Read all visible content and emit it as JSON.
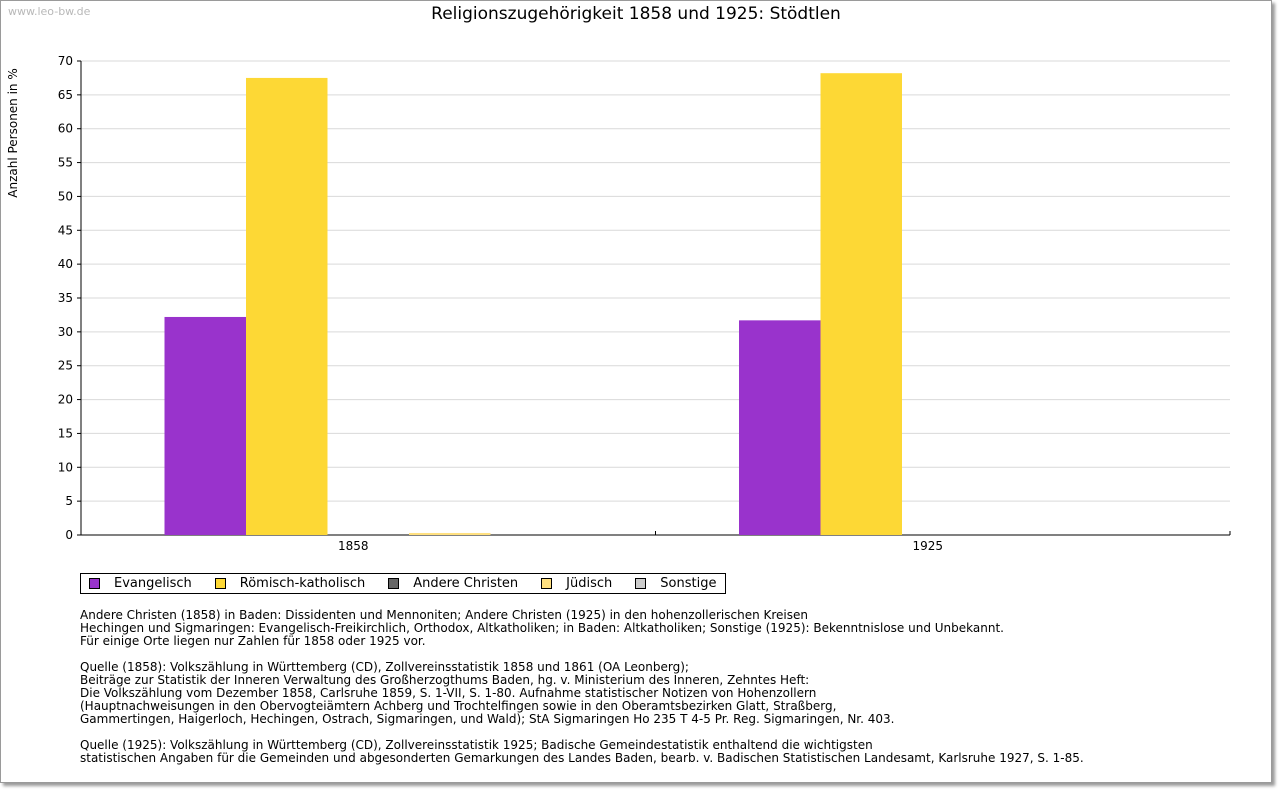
{
  "watermark": "www.leo-bw.de",
  "chart_data": {
    "type": "bar",
    "title": "Religionszugehörigkeit 1858 und 1925: Stödtlen",
    "xlabel": "",
    "ylabel": "Anzahl Personen in %",
    "ylim": [
      0,
      70
    ],
    "yticks": [
      0,
      5,
      10,
      15,
      20,
      25,
      30,
      35,
      40,
      45,
      50,
      55,
      60,
      65,
      70
    ],
    "grid": true,
    "categories": [
      "1858",
      "1925"
    ],
    "series": [
      {
        "name": "Evangelisch",
        "color": "#9933cc",
        "values": [
          32.2,
          31.7
        ]
      },
      {
        "name": "Römisch-katholisch",
        "color": "#fdd835",
        "values": [
          67.5,
          68.2
        ]
      },
      {
        "name": "Andere Christen",
        "color": "#666666",
        "values": [
          0,
          0
        ]
      },
      {
        "name": "Jüdisch",
        "color": "#ffe080",
        "values": [
          0.3,
          0
        ]
      },
      {
        "name": "Sonstige",
        "color": "#cccccc",
        "values": [
          0,
          0
        ]
      }
    ],
    "legend_position": "bottom-left"
  },
  "notes": [
    "Andere Christen (1858) in Baden: Dissidenten und Mennoniten; Andere Christen (1925) in den hohenzollerischen Kreisen\nHechingen und Sigmaringen: Evangelisch-Freikirchlich, Orthodox, Altkatholiken; in Baden: Altkatholiken; Sonstige (1925): Bekenntnislose und Unbekannt.\nFür einige Orte liegen nur Zahlen für 1858 oder 1925 vor.",
    "Quelle (1858): Volkszählung in Württemberg (CD), Zollvereinsstatistik 1858 und 1861 (OA Leonberg);\nBeiträge zur Statistik der Inneren Verwaltung des Großherzogthums Baden, hg. v. Ministerium des Inneren, Zehntes Heft:\nDie Volkszählung vom Dezember 1858, Carlsruhe 1859, S. 1-VII, S. 1-80. Aufnahme statistischer Notizen von Hohenzollern\n(Hauptnachweisungen in den Obervogteiämtern Achberg und Trochtelfingen sowie in den Oberamtsbezirken Glatt, Straßberg,\nGammertingen, Haigerloch, Hechingen, Ostrach, Sigmaringen, und Wald); StA Sigmaringen Ho 235 T 4-5 Pr. Reg. Sigmaringen, Nr. 403.",
    "Quelle (1925): Volkszählung in Württemberg (CD), Zollvereinsstatistik 1925; Badische Gemeindestatistik enthaltend die wichtigsten\nstatistischen Angaben für die Gemeinden und abgesonderten Gemarkungen des Landes Baden, bearb. v. Badischen Statistischen Landesamt, Karlsruhe 1927, S. 1-85."
  ]
}
